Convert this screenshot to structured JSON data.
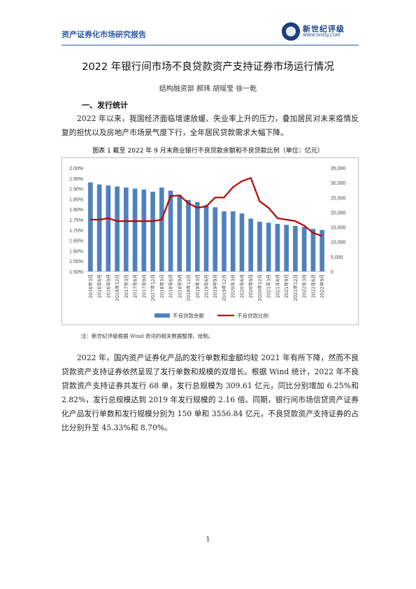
{
  "header": {
    "report_name": "资产证券化市场研究报告",
    "logo_cn": "新世纪评级",
    "logo_url": "WWW.SHXSJ.COM"
  },
  "title": "2022 年银行间市场不良贷款资产支持证券市场运行情况",
  "authors": "结构融资部  郝玮  胡瑶莹  徐一乾",
  "section1": {
    "heading": "一、发行统计",
    "para1": "2022 年以来，我国经济面临增速放缓、失业率上升的压力，叠加居民对未来疫情反复的担忧以及房地产市场景气度下行，全年居民贷款需求大幅下降。",
    "figure_caption": "图表 1 截至 2022 年 9 月末商业银行不良贷款余额和不良贷款比例（单位：亿元）",
    "note": "注：新世纪评级根据 Wind 资讯的相关数据整理、绘制。",
    "para2": "2022 年，国内资产证券化产品的发行单数和金额均较 2021 年有所下降，然而不良贷款资产支持证券依然呈现了发行单数和规模的双增长。根据 Wind 统计，2022 年不良贷款资产支持证券共发行 68 单，发行总规模为 309.61 亿元，同比分别增加 6.25%和 2.82%，发行总规模达到 2019 年发行规模的 2.16 倍。同期，银行间市场信贷资产证券化产品发行单数和发行规模分别为 150 单和 3556.84 亿元，不良贷款资产支持证券的占比分别升至 45.33%和 8.70%。"
  },
  "chart_data": {
    "type": "bar+line",
    "categories": [
      "2016年3月",
      "2016年6月",
      "2016年9月",
      "2016年12月",
      "2017年3月",
      "2017年6月",
      "2017年9月",
      "2017年12月",
      "2018年3月",
      "2018年6月",
      "2018年9月",
      "2018年12月",
      "2019年3月",
      "2019年6月",
      "2019年9月",
      "2019年12月",
      "2020年3月",
      "2020年6月",
      "2020年9月",
      "2020年12月",
      "2021年3月",
      "2021年6月",
      "2021年9月",
      "2021年12月",
      "2022年3月",
      "2022年6月",
      "2022年9月"
    ],
    "left_axis": {
      "ticks": [
        "1.50%",
        "1.55%",
        "1.60%",
        "1.65%",
        "1.70%",
        "1.75%",
        "1.80%",
        "1.85%",
        "1.90%",
        "1.95%",
        "2.00%"
      ],
      "min": 1.5,
      "max": 2.0
    },
    "right_axis": {
      "ticks": [
        "0",
        "5,000",
        "10,000",
        "15,000",
        "20,000",
        "25,000",
        "30,000",
        "35,000"
      ],
      "min": 0,
      "max": 35000
    },
    "series": [
      {
        "name": "不良贷款余额",
        "type": "bar",
        "color": "#4f81bd",
        "axis": "left",
        "values": [
          1.93,
          1.92,
          1.915,
          1.91,
          1.905,
          1.9,
          1.895,
          1.885,
          1.905,
          1.89,
          1.87,
          1.845,
          1.835,
          1.82,
          1.81,
          1.79,
          1.79,
          1.78,
          1.755,
          1.74,
          1.735,
          1.73,
          1.725,
          1.72,
          1.715,
          1.705,
          1.7
        ]
      },
      {
        "name": "不良贷款比例",
        "type": "line",
        "color": "#c00000",
        "axis": "right",
        "values": [
          17500,
          17500,
          18000,
          17000,
          17000,
          17000,
          17000,
          17000,
          17500,
          25500,
          25700,
          23000,
          21500,
          22000,
          25000,
          25000,
          28500,
          30500,
          31600,
          23700,
          21500,
          18000,
          17500,
          17000,
          15500,
          13000,
          12000
        ]
      }
    ]
  }
}
